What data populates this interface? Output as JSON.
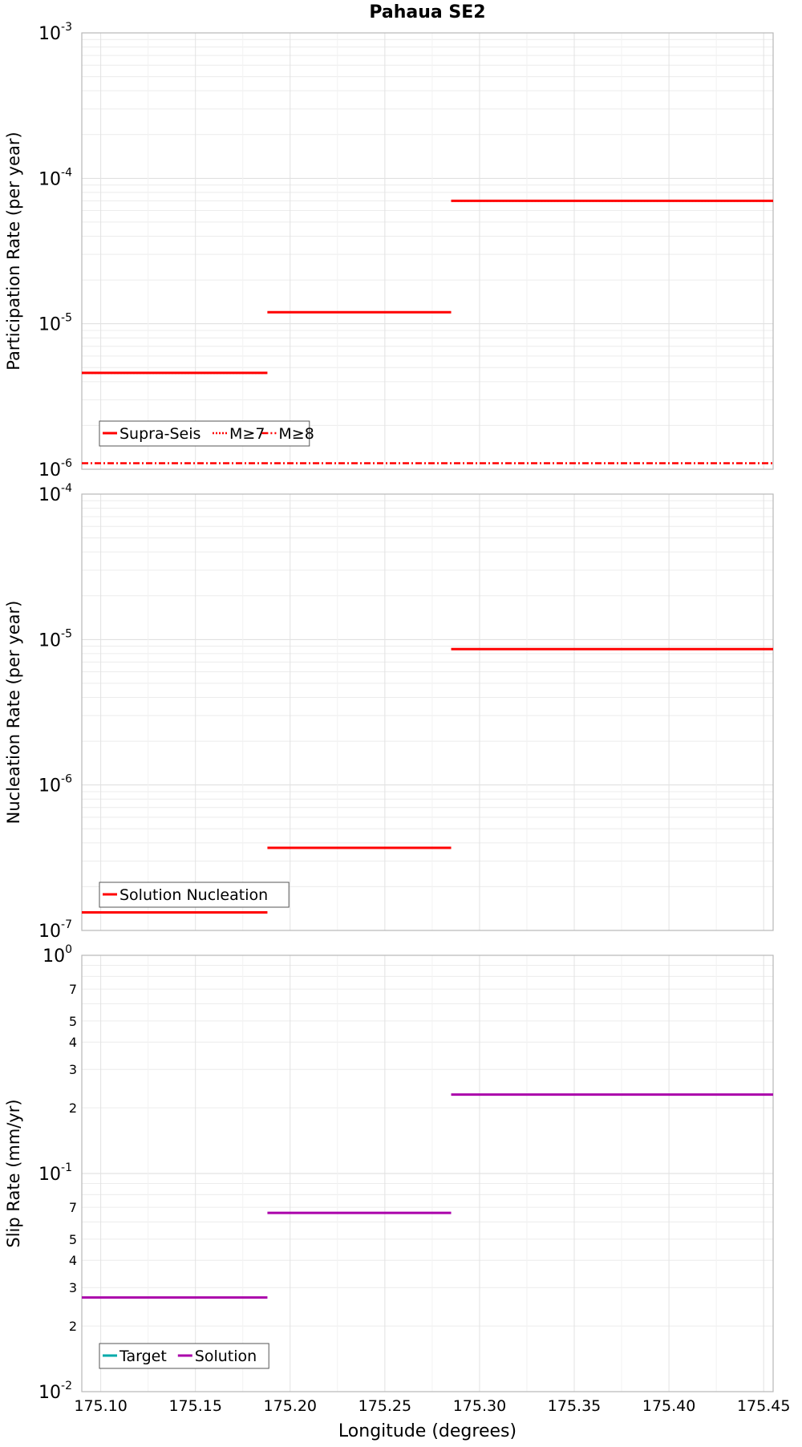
{
  "title": "Pahaua SE2",
  "xlabel": "Longitude (degrees)",
  "chart_data": {
    "type": "line",
    "title": "Pahaua SE2",
    "xlabel": "Longitude (degrees)",
    "xlim": [
      175.09,
      175.455
    ],
    "x_ticks": [
      175.1,
      175.15,
      175.2,
      175.25,
      175.3,
      175.35,
      175.4,
      175.45
    ],
    "x_tick_labels": [
      "175.10",
      "175.15",
      "175.20",
      "175.25",
      "175.30",
      "175.35",
      "175.40",
      "175.45"
    ],
    "grid": true,
    "panels": [
      {
        "id": "participation",
        "ylabel": "Participation Rate (per year)",
        "yscale": "log",
        "ylim": [
          1e-06,
          0.001
        ],
        "decade_labels": [
          {
            "value": 1e-06,
            "base": "10",
            "exp": "-6"
          },
          {
            "value": 1e-05,
            "base": "10",
            "exp": "-5"
          },
          {
            "value": 0.0001,
            "base": "10",
            "exp": "-4"
          },
          {
            "value": 0.001,
            "base": "10",
            "exp": "-3"
          }
        ],
        "minor_labels": [],
        "legend_position": "bottom-left",
        "series": [
          {
            "name": "Supra-Seis",
            "color": "#ff0000",
            "style": "solid",
            "segments": [
              {
                "x": [
                  175.09,
                  175.188
                ],
                "y": 4.6e-06
              },
              {
                "x": [
                  175.188,
                  175.285
                ],
                "y": 1.2e-05
              },
              {
                "x": [
                  175.285,
                  175.455
                ],
                "y": 7e-05
              }
            ]
          },
          {
            "name": "M≥7",
            "color": "#ff0000",
            "style": "dotted",
            "segments": [
              {
                "x": [
                  175.09,
                  175.188
                ],
                "y": 4.6e-06
              },
              {
                "x": [
                  175.188,
                  175.285
                ],
                "y": 1.2e-05
              },
              {
                "x": [
                  175.285,
                  175.455
                ],
                "y": 7e-05
              }
            ]
          },
          {
            "name": "M≥8",
            "color": "#ff0000",
            "style": "dashdot",
            "segments": [
              {
                "x": [
                  175.09,
                  175.455
                ],
                "y": 1.1e-06
              }
            ]
          }
        ]
      },
      {
        "id": "nucleation",
        "ylabel": "Nucleation Rate (per year)",
        "yscale": "log",
        "ylim": [
          1e-07,
          0.0001
        ],
        "decade_labels": [
          {
            "value": 1e-07,
            "base": "10",
            "exp": "-7"
          },
          {
            "value": 1e-06,
            "base": "10",
            "exp": "-6"
          },
          {
            "value": 1e-05,
            "base": "10",
            "exp": "-5"
          },
          {
            "value": 0.0001,
            "base": "10",
            "exp": "-4"
          }
        ],
        "minor_labels": [],
        "legend_position": "bottom-left",
        "series": [
          {
            "name": "Solution Nucleation",
            "color": "#ff0000",
            "style": "solid",
            "segments": [
              {
                "x": [
                  175.09,
                  175.188
                ],
                "y": 1.33e-07
              },
              {
                "x": [
                  175.188,
                  175.285
                ],
                "y": 3.7e-07
              },
              {
                "x": [
                  175.285,
                  175.455
                ],
                "y": 8.6e-06
              }
            ]
          }
        ]
      },
      {
        "id": "slip",
        "ylabel": "Slip Rate (mm/yr)",
        "yscale": "log",
        "ylim": [
          0.01,
          1
        ],
        "decade_labels": [
          {
            "value": 0.01,
            "base": "10",
            "exp": "-2"
          },
          {
            "value": 0.1,
            "base": "10",
            "exp": "-1"
          },
          {
            "value": 1,
            "base": "10",
            "exp": "0"
          }
        ],
        "minor_labels": [
          {
            "value": 0.02,
            "label": "2"
          },
          {
            "value": 0.03,
            "label": "3"
          },
          {
            "value": 0.04,
            "label": "4"
          },
          {
            "value": 0.05,
            "label": "5"
          },
          {
            "value": 0.07,
            "label": "7"
          },
          {
            "value": 0.2,
            "label": "2"
          },
          {
            "value": 0.3,
            "label": "3"
          },
          {
            "value": 0.4,
            "label": "4"
          },
          {
            "value": 0.5,
            "label": "5"
          },
          {
            "value": 0.7,
            "label": "7"
          }
        ],
        "legend_position": "bottom-left",
        "series": [
          {
            "name": "Target",
            "color": "#00aaaa",
            "style": "solid",
            "segments": []
          },
          {
            "name": "Solution",
            "color": "#aa00aa",
            "style": "solid",
            "segments": [
              {
                "x": [
                  175.09,
                  175.188
                ],
                "y": 0.027
              },
              {
                "x": [
                  175.188,
                  175.285
                ],
                "y": 0.066
              },
              {
                "x": [
                  175.285,
                  175.455
                ],
                "y": 0.23
              }
            ]
          }
        ]
      }
    ]
  }
}
